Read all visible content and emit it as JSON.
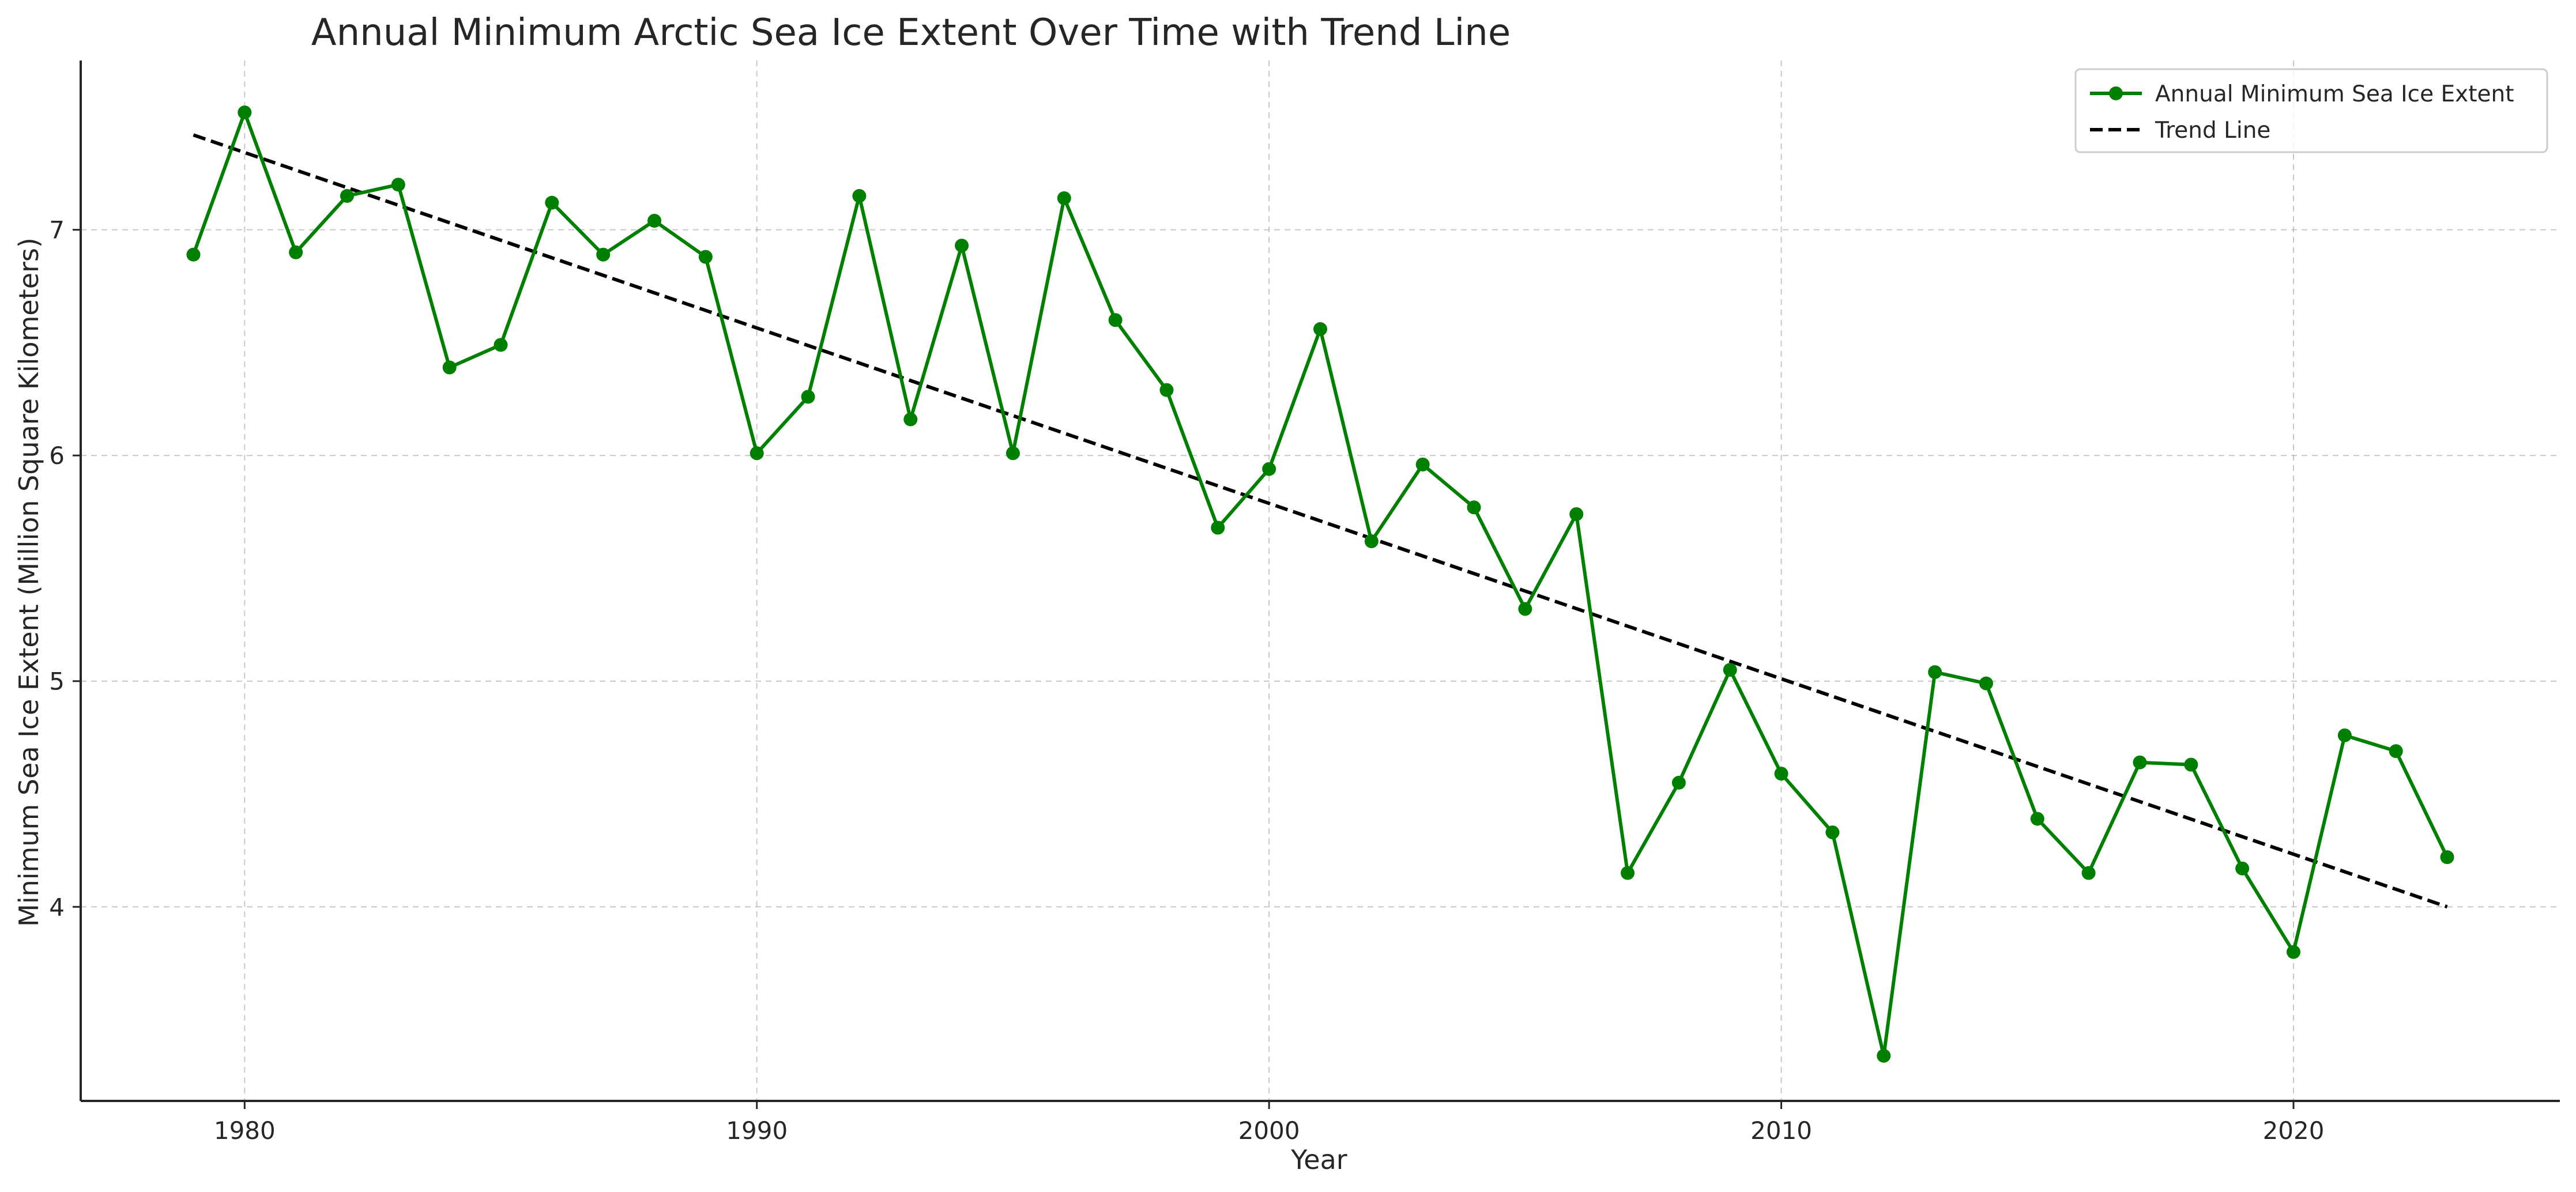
{
  "chart_data": {
    "type": "line",
    "title": "Annual Minimum Arctic Sea Ice Extent Over Time with Trend Line",
    "xlabel": "Year",
    "ylabel": "Minimum Sea Ice Extent (Million Square Kilometers)",
    "xlim": [
      1976.8,
      2025.2
    ],
    "ylim": [
      3.14,
      7.75
    ],
    "xticks": [
      1980,
      1990,
      2000,
      2010,
      2020
    ],
    "yticks": [
      4,
      5,
      6,
      7
    ],
    "grid": true,
    "legend_position": "top-right",
    "x": [
      1979,
      1980,
      1981,
      1982,
      1983,
      1984,
      1985,
      1986,
      1987,
      1988,
      1989,
      1990,
      1991,
      1992,
      1993,
      1994,
      1995,
      1996,
      1997,
      1998,
      1999,
      2000,
      2001,
      2002,
      2003,
      2004,
      2005,
      2006,
      2007,
      2008,
      2009,
      2010,
      2011,
      2012,
      2013,
      2014,
      2015,
      2016,
      2017,
      2018,
      2019,
      2020,
      2021,
      2022,
      2023
    ],
    "series": [
      {
        "name": "Annual Minimum Sea Ice Extent",
        "color": "#008000",
        "style": "solid",
        "marker": "circle",
        "values": [
          6.89,
          7.52,
          6.9,
          7.15,
          7.2,
          6.39,
          6.49,
          7.12,
          6.89,
          7.04,
          6.88,
          6.01,
          6.26,
          7.15,
          6.16,
          6.93,
          6.01,
          7.14,
          6.6,
          6.29,
          5.68,
          5.94,
          6.56,
          5.62,
          5.96,
          5.77,
          5.32,
          5.74,
          4.15,
          4.55,
          5.05,
          4.59,
          4.33,
          3.34,
          5.04,
          4.99,
          4.39,
          4.15,
          4.64,
          4.63,
          4.17,
          3.8,
          4.76,
          4.69,
          4.22
        ]
      },
      {
        "name": "Trend Line",
        "color": "#000000",
        "style": "dashed",
        "marker": "none",
        "values": [
          7.42,
          4.0
        ],
        "x": [
          1979,
          2023
        ]
      }
    ]
  }
}
